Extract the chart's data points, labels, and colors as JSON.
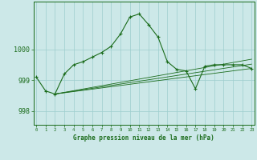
{
  "main_line": {
    "x": [
      0,
      1,
      2,
      3,
      4,
      5,
      6,
      7,
      8,
      9,
      10,
      11,
      12,
      13,
      14,
      15,
      16,
      17,
      18,
      19,
      20,
      21,
      22,
      23
    ],
    "y": [
      999.1,
      998.65,
      998.55,
      999.2,
      999.5,
      999.6,
      999.75,
      999.9,
      1000.1,
      1000.5,
      1001.05,
      1001.15,
      1000.8,
      1000.4,
      999.6,
      999.35,
      999.3,
      998.72,
      999.45,
      999.5,
      999.5,
      999.5,
      999.5,
      999.38
    ]
  },
  "trend_lines": [
    {
      "x": [
        2,
        23
      ],
      "y": [
        998.55,
        999.38
      ]
    },
    {
      "x": [
        2,
        23
      ],
      "y": [
        998.55,
        999.52
      ]
    },
    {
      "x": [
        2,
        23
      ],
      "y": [
        998.55,
        999.68
      ]
    }
  ],
  "line_color": "#1a6b1a",
  "bg_color": "#cce8e8",
  "grid_color": "#9ecece",
  "xlabel": "Graphe pression niveau de la mer (hPa)",
  "yticks": [
    998,
    999,
    1000
  ],
  "xlim": [
    -0.3,
    23.3
  ],
  "ylim": [
    997.55,
    1001.55
  ],
  "xtick_labels": [
    "0",
    "1",
    "2",
    "3",
    "4",
    "5",
    "6",
    "7",
    "8",
    "9",
    "10",
    "11",
    "12",
    "13",
    "14",
    "15",
    "16",
    "17",
    "18",
    "19",
    "20",
    "21",
    "22",
    "23"
  ]
}
